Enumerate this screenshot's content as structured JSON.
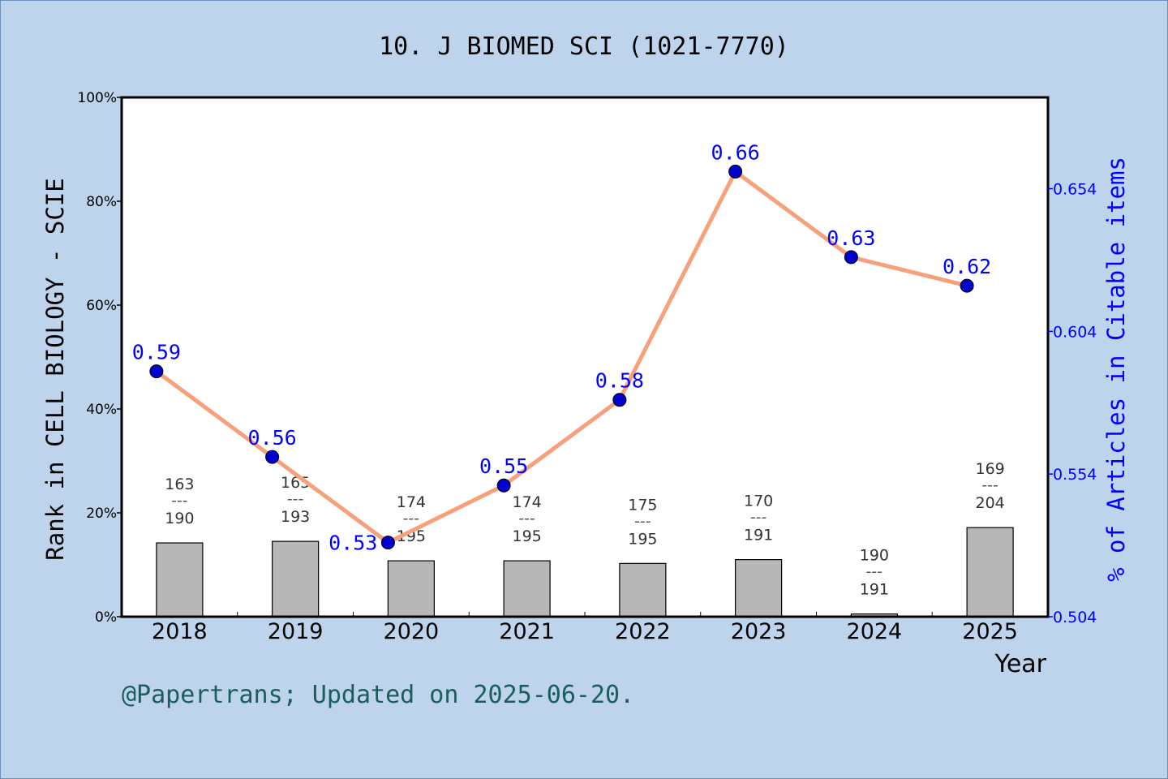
{
  "chart_data": {
    "type": "bar+line",
    "title": "10. J BIOMED SCI (1021-7770)",
    "xlabel": "Year",
    "ylabel_left": "Rank in CELL BIOLOGY - SCIE",
    "ylabel_right": "% of Articles in Citable items",
    "categories": [
      "2018",
      "2019",
      "2020",
      "2021",
      "2022",
      "2023",
      "2024",
      "2025"
    ],
    "left_axis": {
      "ylim": [
        0,
        100
      ],
      "ticks": [
        "0%",
        "20%",
        "40%",
        "60%",
        "80%",
        "100%"
      ]
    },
    "right_axis": {
      "ylim": [
        0.504,
        0.686
      ],
      "ticks": [
        "0.504",
        "0.554",
        "0.604",
        "0.654"
      ],
      "color": "#0000ff"
    },
    "bars": {
      "rank": [
        163,
        165,
        174,
        174,
        175,
        170,
        190,
        169
      ],
      "total": [
        190,
        193,
        195,
        195,
        195,
        191,
        191,
        204
      ],
      "color": "#b7b7b7"
    },
    "line": {
      "values": [
        0.59,
        0.56,
        0.53,
        0.55,
        0.58,
        0.66,
        0.63,
        0.62
      ],
      "labels": [
        "0.59",
        "0.56",
        "0.53",
        "0.55",
        "0.58",
        "0.66",
        "0.63",
        "0.62"
      ],
      "line_color": "#f7a07c",
      "marker_color": "#0000cc",
      "label_color": "#0000ff"
    },
    "grid": false
  },
  "footer": "@Papertrans; Updated on 2025-06-20."
}
